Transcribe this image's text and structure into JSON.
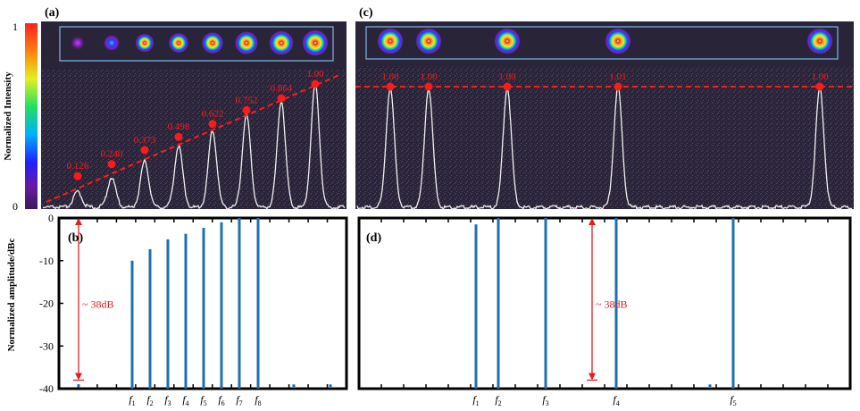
{
  "colorbar": {
    "label": "Normalized Intensity",
    "tick_top": "1",
    "tick_bottom": "0"
  },
  "panels": {
    "a": {
      "label": "(a)"
    },
    "b": {
      "label": "(b)"
    },
    "c": {
      "label": "(c)"
    },
    "d": {
      "label": "(d)"
    }
  },
  "y_axis_label": "Normalized amplitude/dBc",
  "chart_data": [
    {
      "panel": "a",
      "type": "line",
      "title": "",
      "description_series": "normalized peak intensities of 8 spots",
      "peaks": [
        0.126,
        0.24,
        0.373,
        0.498,
        0.622,
        0.752,
        0.864,
        1.0
      ],
      "peak_labels": [
        "0.126",
        "0.240",
        "0.373",
        "0.498",
        "0.622",
        "0.752",
        "0.864",
        "1.00"
      ],
      "ylim": [
        0,
        1
      ],
      "fit_line": "dashed red linear trend"
    },
    {
      "panel": "b",
      "type": "bar",
      "categories": [
        "f1",
        "f2",
        "f3",
        "f4",
        "f5",
        "f6",
        "f7",
        "f8"
      ],
      "values": [
        -10,
        -7.3,
        -5,
        -3.7,
        -2.3,
        -1,
        0,
        0
      ],
      "noise_floor": -38,
      "annotation": "~ 38dB",
      "ylim": [
        -40,
        0
      ],
      "yticks": [
        0,
        -10,
        -20,
        -30,
        -40
      ],
      "ylabel": "Normalized amplitude/dBc"
    },
    {
      "panel": "c",
      "type": "line",
      "title": "",
      "peaks": [
        1.0,
        1.0,
        1.0,
        1.01,
        1.0
      ],
      "peak_labels": [
        "1.00",
        "1.00",
        "1.00",
        "1.01",
        "1.00"
      ],
      "ylim": [
        0,
        1.1
      ],
      "fit_line": "dashed red flat line"
    },
    {
      "panel": "d",
      "type": "bar",
      "categories": [
        "f1",
        "f2",
        "f3",
        "f4",
        "f5"
      ],
      "values": [
        -1.5,
        0,
        0,
        0,
        0
      ],
      "noise_floor": -38,
      "annotation": "~ 38dB",
      "ylim": [
        -40,
        0
      ],
      "yticks": [
        0,
        -10,
        -20,
        -30,
        -40
      ]
    }
  ],
  "colors": {
    "bar": "#1f6fb2",
    "annotation": "#e02020",
    "peak_marker": "#ff1a1a",
    "trace": "#f0f0f0",
    "background_noise": "#2a1f3d",
    "roi_box": "#7fb8e8"
  }
}
